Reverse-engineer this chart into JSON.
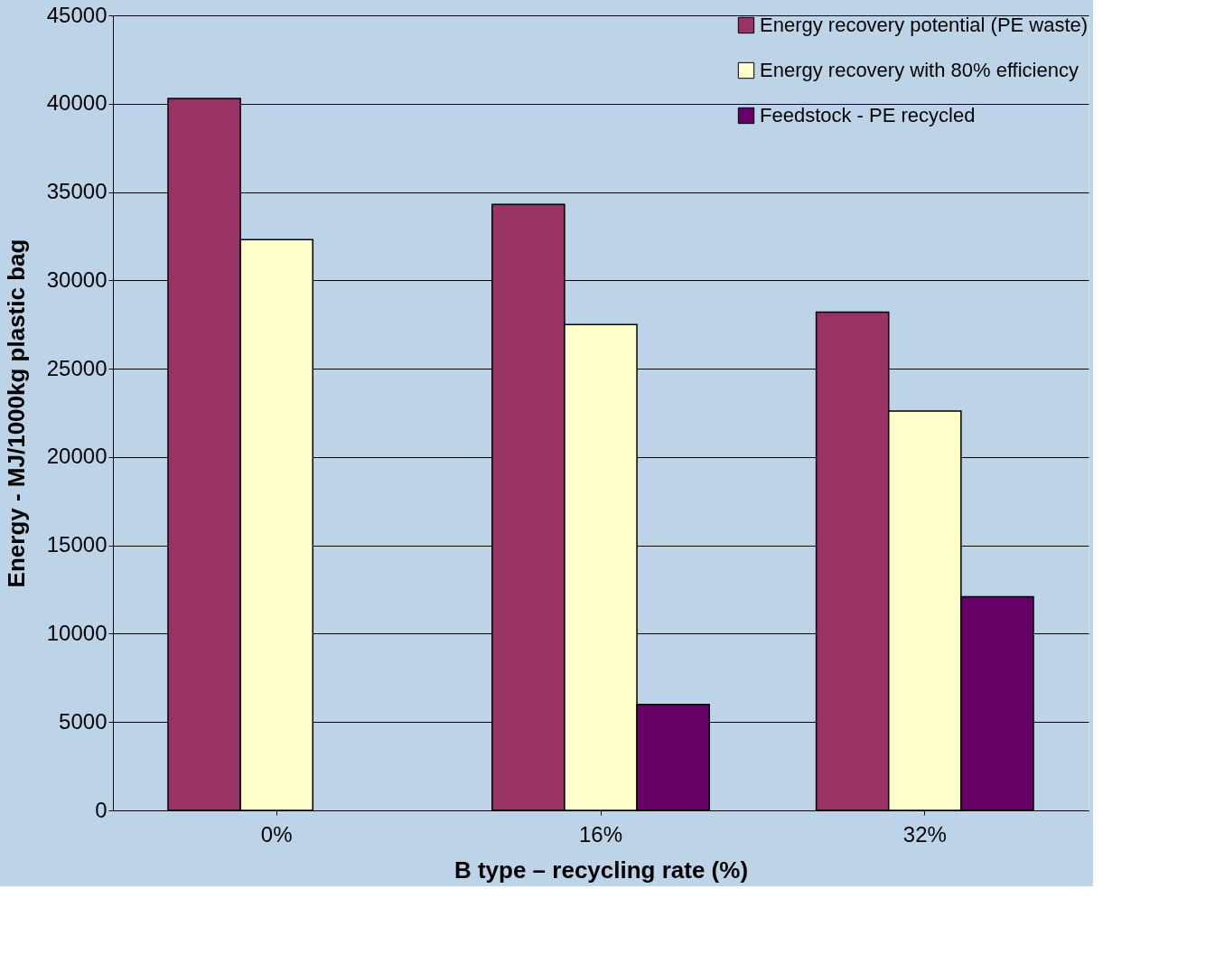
{
  "chart_data": {
    "type": "bar",
    "xlabel": "B type – recycling rate (%)",
    "ylabel": "Energy - MJ/1000kg plastic bag",
    "categories": [
      "0%",
      "16%",
      "32%"
    ],
    "series": [
      {
        "name": "Energy recovery potential (PE waste)",
        "color": "#993366",
        "values": [
          40300,
          34300,
          28200
        ]
      },
      {
        "name": "Energy recovery with 80% efficiency",
        "color": "#ffffcc",
        "values": [
          32300,
          27500,
          22600
        ]
      },
      {
        "name": "Feedstock - PE recycled",
        "color": "#660066",
        "values": [
          null,
          6000,
          12100
        ]
      }
    ],
    "ylim": [
      0,
      45000
    ],
    "yticks": [
      0,
      5000,
      10000,
      15000,
      20000,
      25000,
      30000,
      35000,
      40000,
      45000
    ],
    "grid": "y",
    "legend": "top right"
  }
}
